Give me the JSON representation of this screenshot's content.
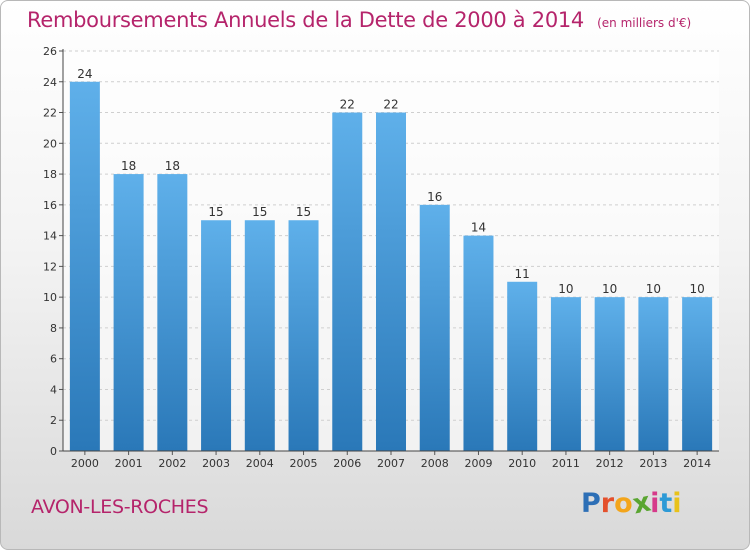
{
  "colors": {
    "title": "#b5246b",
    "bar_light": "#5fb0ea",
    "bar_dark": "#2a78b8",
    "grid": "#cfcfcf"
  },
  "chart_data": {
    "type": "bar",
    "title": "Remboursements Annuels de la Dette de 2000 à 2014",
    "unit_label": "(en milliers d'€)",
    "categories": [
      "2000",
      "2001",
      "2002",
      "2003",
      "2004",
      "2005",
      "2006",
      "2007",
      "2008",
      "2009",
      "2010",
      "2011",
      "2012",
      "2013",
      "2014"
    ],
    "values": [
      24,
      18,
      18,
      15,
      15,
      15,
      22,
      22,
      16,
      14,
      11,
      10,
      10,
      10,
      10
    ],
    "data_labels": [
      "24",
      "18",
      "18",
      "15",
      "15",
      "15",
      "22",
      "22",
      "16",
      "14",
      "11",
      "10",
      "10",
      "10",
      "10"
    ],
    "ylim": [
      0,
      26
    ],
    "yticks": [
      0,
      2,
      4,
      6,
      8,
      10,
      12,
      14,
      16,
      18,
      20,
      22,
      24,
      26
    ],
    "ytick_labels": [
      "0",
      "2",
      "4",
      "6",
      "8",
      "10",
      "12",
      "14",
      "16",
      "18",
      "20",
      "22",
      "24",
      "26"
    ],
    "grid": true,
    "xlabel": "",
    "ylabel": ""
  },
  "footer": {
    "town": "AVON-LES-ROCHES",
    "logo": {
      "text": "Proxiti",
      "letters": [
        {
          "ch": "P",
          "color": "#2d6fb6"
        },
        {
          "ch": "r",
          "color": "#e4502c"
        },
        {
          "ch": "o",
          "color": "#f3a51b"
        },
        {
          "ch": "x",
          "color": "#5aa531"
        },
        {
          "ch": "i",
          "color": "#d63a8a"
        },
        {
          "ch": "t",
          "color": "#2d9ad6"
        },
        {
          "ch": "i",
          "color": "#e8c21a"
        }
      ]
    }
  }
}
